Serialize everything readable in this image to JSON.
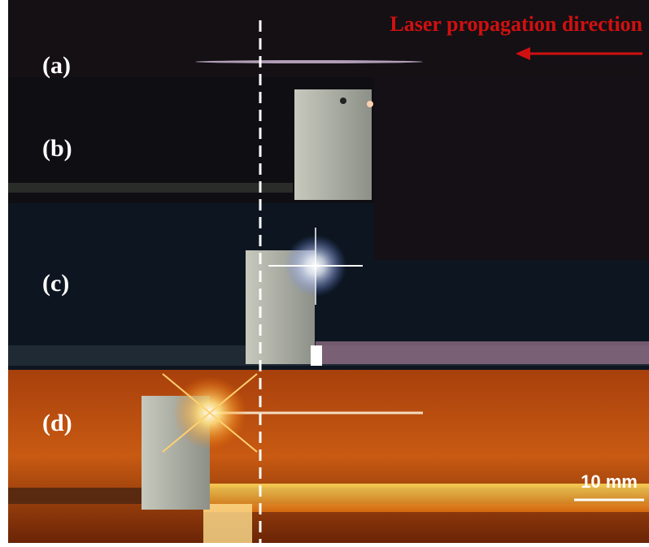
{
  "header": {
    "title": "Laser propagation direction"
  },
  "panels": [
    {
      "label": "(a)"
    },
    {
      "label": "(b)"
    },
    {
      "label": "(c)"
    },
    {
      "label": "(d)"
    }
  ],
  "scale_bar": {
    "label": "10 mm"
  }
}
